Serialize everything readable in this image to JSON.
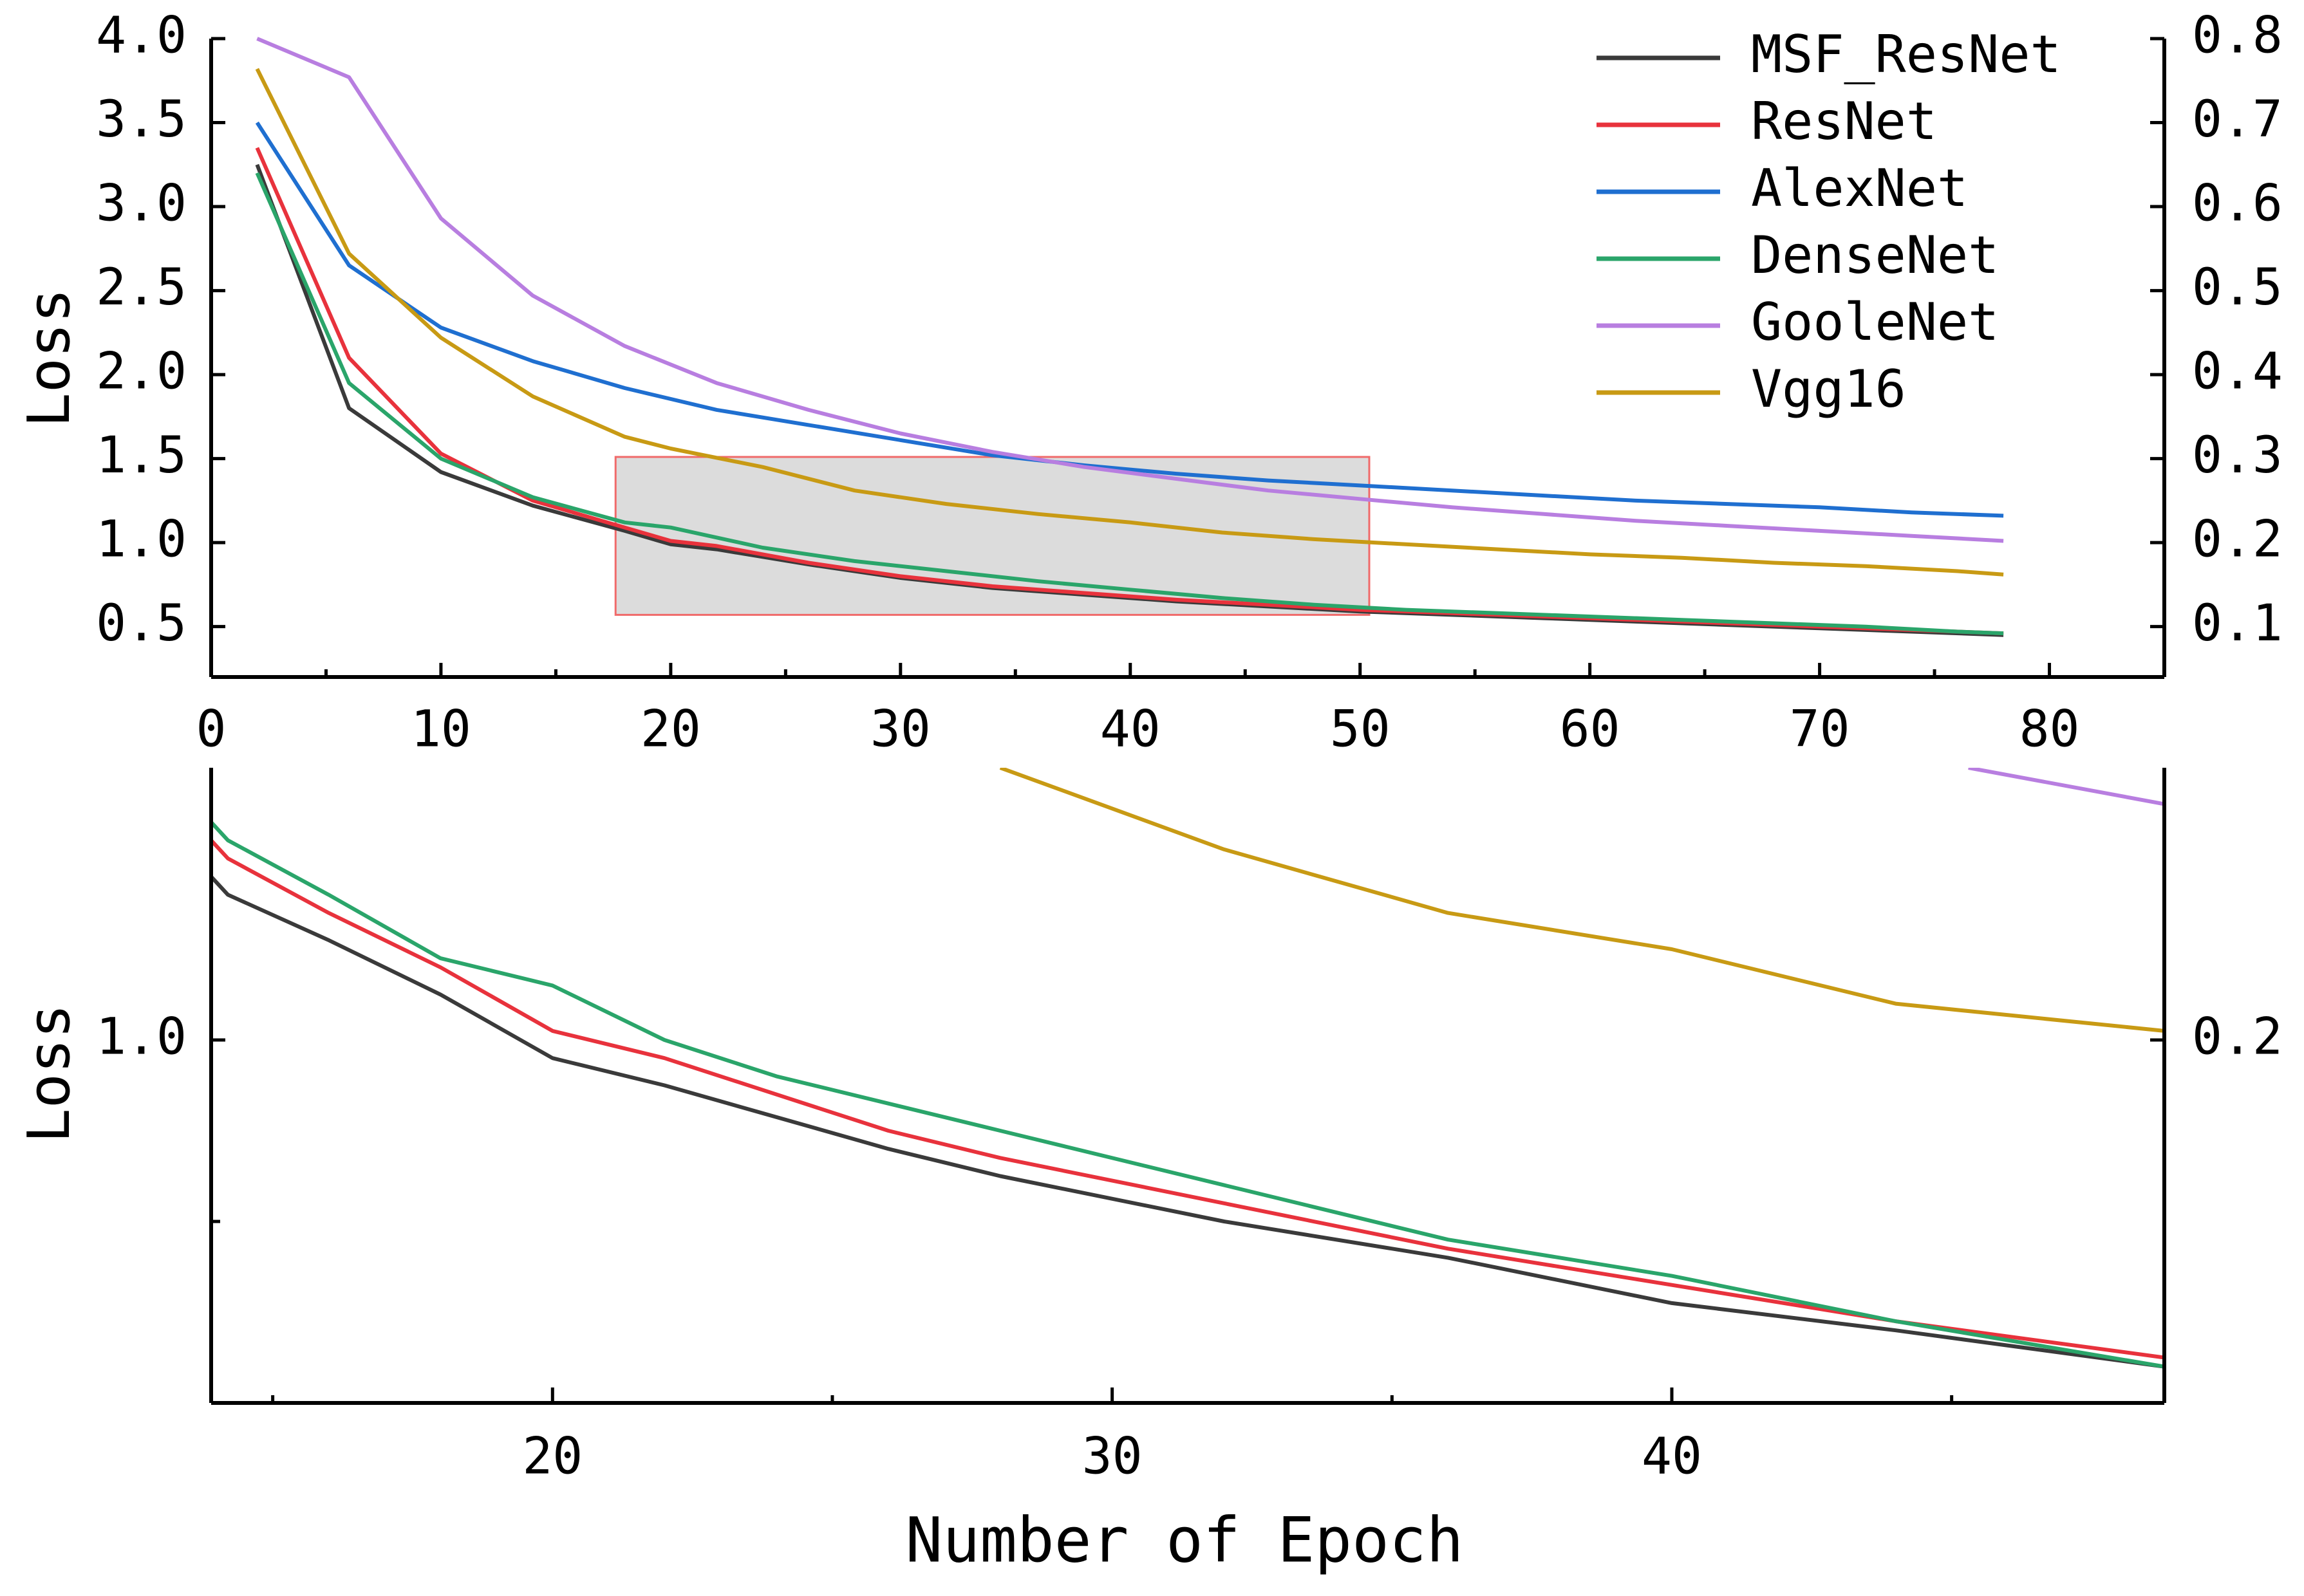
{
  "chart_data": [
    {
      "type": "line",
      "xlabel": "",
      "ylabel": "Loss",
      "xlim": [
        0,
        85
      ],
      "ylim": [
        0.2,
        4.0
      ],
      "y2lim": [
        0.04,
        0.8
      ],
      "xticks": [
        0,
        10,
        20,
        30,
        40,
        50,
        60,
        70,
        80
      ],
      "yticks": [
        0.5,
        1.0,
        1.5,
        2.0,
        2.5,
        3.0,
        3.5,
        4.0
      ],
      "xtick_labels": [
        "0",
        "10",
        "20",
        "30",
        "40",
        "50",
        "60",
        "70",
        "80"
      ],
      "ytick_labels": [
        "0.5",
        "1.0",
        "1.5",
        "2.0",
        "2.5",
        "3.0",
        "3.5",
        "4.0"
      ],
      "y2tick_labels": [
        "0.1",
        "0.2",
        "0.3",
        "0.4",
        "0.5",
        "0.6",
        "0.7",
        "0.8"
      ],
      "y2ticks": [
        0.1,
        0.2,
        0.3,
        0.4,
        0.5,
        0.6,
        0.7,
        0.8
      ],
      "legend_position": "top-right",
      "zoom_box": {
        "x": [
          17.6,
          50.4
        ],
        "y": [
          0.57,
          1.51
        ]
      },
      "series": [
        {
          "name": "MSF_ResNet",
          "color": "#3a3a3a",
          "x": [
            2,
            6,
            10,
            14,
            18,
            20,
            22,
            26,
            30,
            34,
            38,
            42,
            46,
            50,
            54,
            58,
            62,
            66,
            70,
            74,
            78
          ],
          "y": [
            3.25,
            1.8,
            1.42,
            1.22,
            1.07,
            0.99,
            0.96,
            0.87,
            0.79,
            0.73,
            0.69,
            0.65,
            0.62,
            0.59,
            0.57,
            0.55,
            0.53,
            0.51,
            0.49,
            0.47,
            0.45
          ]
        },
        {
          "name": "ResNet",
          "color": "#e8323c",
          "x": [
            2,
            6,
            10,
            14,
            18,
            20,
            22,
            26,
            30,
            34,
            38,
            42,
            46,
            50,
            54,
            58,
            62,
            66,
            70,
            74,
            78
          ],
          "y": [
            3.35,
            2.1,
            1.53,
            1.25,
            1.09,
            1.01,
            0.98,
            0.88,
            0.8,
            0.74,
            0.7,
            0.66,
            0.63,
            0.6,
            0.58,
            0.56,
            0.54,
            0.52,
            0.5,
            0.48,
            0.46
          ]
        },
        {
          "name": "AlexNet",
          "color": "#1f6fd0",
          "x": [
            2,
            6,
            10,
            14,
            18,
            22,
            26,
            30,
            34,
            38,
            42,
            46,
            50,
            54,
            58,
            62,
            66,
            70,
            74,
            78
          ],
          "y": [
            3.5,
            2.65,
            2.28,
            2.08,
            1.92,
            1.79,
            1.7,
            1.61,
            1.52,
            1.46,
            1.41,
            1.37,
            1.34,
            1.31,
            1.28,
            1.25,
            1.23,
            1.21,
            1.18,
            1.16
          ]
        },
        {
          "name": "DenseNet",
          "color": "#2aa56a",
          "x": [
            2,
            6,
            10,
            14,
            18,
            20,
            24,
            28,
            32,
            36,
            40,
            44,
            48,
            52,
            56,
            60,
            64,
            68,
            72,
            76,
            78
          ],
          "y": [
            3.2,
            1.95,
            1.5,
            1.27,
            1.12,
            1.09,
            0.97,
            0.89,
            0.83,
            0.77,
            0.72,
            0.67,
            0.63,
            0.6,
            0.58,
            0.56,
            0.54,
            0.52,
            0.5,
            0.47,
            0.46
          ]
        },
        {
          "name": "GooleNet",
          "color": "#b87ee0",
          "x": [
            2,
            6,
            10,
            14,
            18,
            22,
            26,
            30,
            34,
            38,
            42,
            46,
            50,
            54,
            58,
            62,
            66,
            70,
            74,
            78
          ],
          "y": [
            4.0,
            3.77,
            2.93,
            2.47,
            2.17,
            1.95,
            1.79,
            1.65,
            1.54,
            1.45,
            1.38,
            1.31,
            1.26,
            1.21,
            1.17,
            1.13,
            1.1,
            1.07,
            1.04,
            1.01
          ]
        },
        {
          "name": "Vgg16",
          "color": "#c89a14",
          "x": [
            2,
            6,
            10,
            14,
            18,
            20,
            24,
            28,
            32,
            36,
            40,
            44,
            48,
            52,
            56,
            60,
            64,
            68,
            72,
            76,
            78
          ],
          "y": [
            3.82,
            2.72,
            2.22,
            1.87,
            1.63,
            1.56,
            1.45,
            1.31,
            1.23,
            1.17,
            1.12,
            1.06,
            1.02,
            0.99,
            0.96,
            0.93,
            0.91,
            0.88,
            0.86,
            0.83,
            0.81
          ]
        }
      ]
    },
    {
      "type": "line",
      "xlabel": "Number of Epoch",
      "ylabel": "Loss",
      "xlim": [
        13.9,
        48.8
      ],
      "ylim": [
        0.6,
        1.3
      ],
      "y2lim": [
        0.12,
        0.26
      ],
      "xticks": [
        20,
        30,
        40
      ],
      "xtick_labels": [
        "20",
        "30",
        "40"
      ],
      "minor_xticks": [
        15,
        25,
        35,
        45
      ],
      "yticks": [
        1.0
      ],
      "ytick_labels": [
        "1.0"
      ],
      "minor_yticks": [
        0.8
      ],
      "y2ticks": [
        0.2
      ],
      "y2tick_labels": [
        "0.2"
      ],
      "series": [
        {
          "name": "MSF_ResNet",
          "color": "#3a3a3a",
          "x": [
            13.9,
            14.2,
            16,
            18,
            20,
            22,
            26,
            28,
            32,
            36,
            40,
            44,
            48.8
          ],
          "y": [
            1.18,
            1.16,
            1.11,
            1.05,
            0.98,
            0.95,
            0.88,
            0.85,
            0.8,
            0.76,
            0.71,
            0.68,
            0.64
          ]
        },
        {
          "name": "ResNet",
          "color": "#e8323c",
          "x": [
            13.9,
            14.2,
            16,
            18,
            20,
            22,
            26,
            28,
            32,
            36,
            40,
            44,
            48.8
          ],
          "y": [
            1.22,
            1.2,
            1.14,
            1.08,
            1.01,
            0.98,
            0.9,
            0.87,
            0.82,
            0.77,
            0.73,
            0.69,
            0.65
          ]
        },
        {
          "name": "DenseNet",
          "color": "#2aa56a",
          "x": [
            13.9,
            14.2,
            16,
            18,
            20,
            22,
            24,
            28,
            32,
            36,
            40,
            44,
            48.8
          ],
          "y": [
            1.24,
            1.22,
            1.16,
            1.09,
            1.06,
            1.0,
            0.96,
            0.9,
            0.84,
            0.78,
            0.74,
            0.69,
            0.64
          ]
        },
        {
          "name": "GooleNet",
          "color": "#b87ee0",
          "x": [
            45.3,
            48.8
          ],
          "y": [
            1.3,
            1.26
          ]
        },
        {
          "name": "Vgg16",
          "color": "#c89a14",
          "x": [
            28,
            32,
            36,
            40,
            44,
            48.8
          ],
          "y": [
            1.3,
            1.21,
            1.14,
            1.1,
            1.04,
            1.01
          ]
        }
      ]
    }
  ]
}
